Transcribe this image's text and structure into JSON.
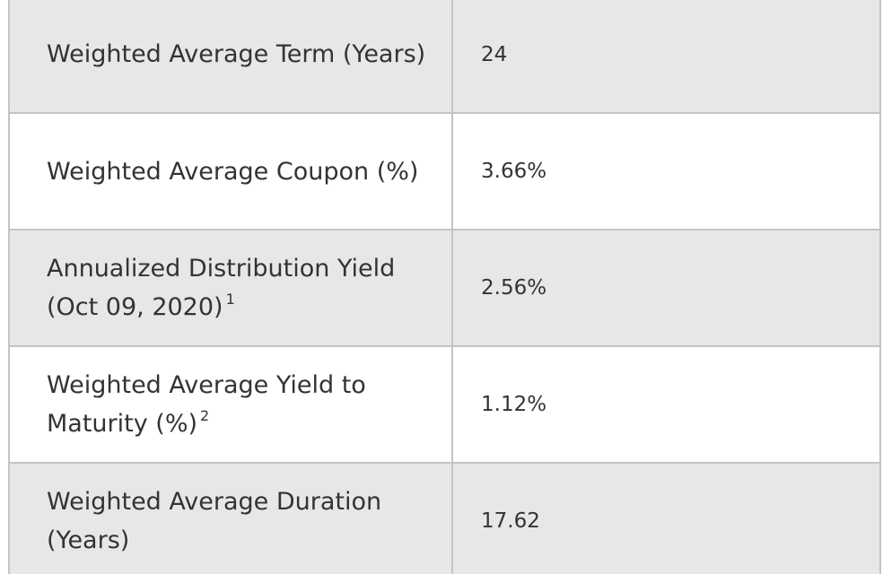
{
  "rows": [
    {
      "label": "Weighted Average Term (Years)",
      "footnote": "",
      "value": "24"
    },
    {
      "label": "Weighted Average Coupon (%)",
      "footnote": "",
      "value": "3.66%"
    },
    {
      "label": "Annualized Distribution Yield (Oct 09, 2020)",
      "footnote": "1",
      "value": "2.56%"
    },
    {
      "label": "Weighted Average Yield to Maturity (%)",
      "footnote": "2",
      "value": "1.12%"
    },
    {
      "label": "Weighted Average Duration (Years)",
      "footnote": "",
      "value": "17.62"
    }
  ],
  "colors": {
    "row_shaded": "#e7e7e7",
    "row_plain": "#ffffff",
    "border": "#c4c4c4",
    "text": "#333333"
  }
}
